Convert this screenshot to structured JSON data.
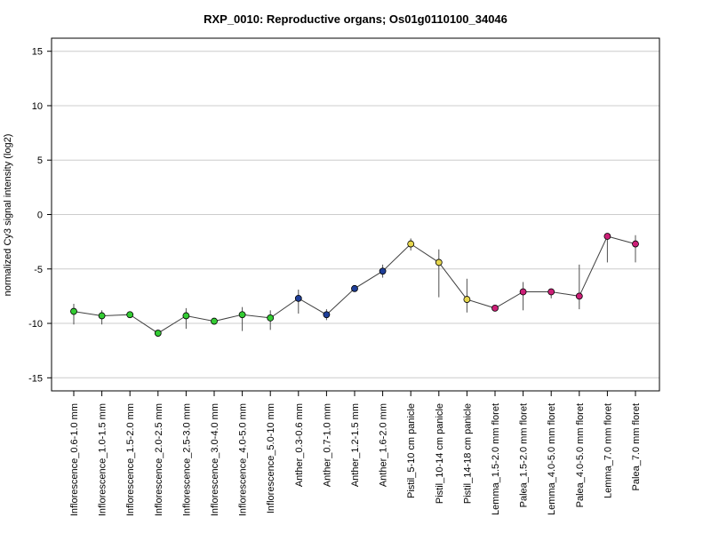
{
  "chart_data": {
    "type": "line",
    "title": "RXP_0010: Reproductive organs; Os01g0110100_34046",
    "xlabel": "",
    "ylabel": "normalized Cy3 signal intensity (log2)",
    "ylim": [
      -16.2,
      16.2
    ],
    "yticks": [
      -15,
      -10,
      -5,
      0,
      5,
      10,
      15
    ],
    "grid": true,
    "categories": [
      "Inflorescence_0.6-1.0 mm",
      "Inflorescence_1.0-1.5 mm",
      "Inflorescence_1.5-2.0 mm",
      "Inflorescence_2.0-2.5 mm",
      "Inflorescence_2.5-3.0 mm",
      "Inflorescence_3.0-4.0 mm",
      "Inflorescence_4.0-5.0 mm",
      "Inflorescence_5.0-10 mm",
      "Anther_0.3-0.6 mm",
      "Anther_0.7-1.0 mm",
      "Anther_1.2-1.5 mm",
      "Anther_1.6-2.0 mm",
      "Pistil_5-10 cm panicle",
      "Pistil_10-14 cm panicle",
      "Pistil_14-18 cm panicle",
      "Lemma_1.5-2.0 mm floret",
      "Palea_1.5-2.0 mm floret",
      "Lemma_4.0-5.0 mm floret",
      "Palea_4.0-5.0 mm floret",
      "Lemma_7.0 mm floret",
      "Palea_7.0 mm floret"
    ],
    "values": [
      -8.9,
      -9.3,
      -9.2,
      -10.9,
      -9.3,
      -9.8,
      -9.2,
      -9.5,
      -7.7,
      -9.2,
      -6.8,
      -5.2,
      -2.7,
      -4.4,
      -7.8,
      -8.6,
      -7.1,
      -7.1,
      -7.5,
      -2.0,
      -2.7
    ],
    "error_low": [
      -10.1,
      -10.1,
      -9.4,
      -11.0,
      -10.5,
      -10.0,
      -10.7,
      -10.6,
      -9.1,
      -9.7,
      -7.1,
      -5.8,
      -3.3,
      -7.6,
      -9.0,
      -8.8,
      -8.8,
      -7.7,
      -8.7,
      -4.4,
      -4.4
    ],
    "error_high": [
      -8.2,
      -8.8,
      -8.9,
      -10.8,
      -8.6,
      -9.6,
      -8.5,
      -8.8,
      -6.9,
      -8.7,
      -6.5,
      -4.6,
      -2.2,
      -3.2,
      -5.9,
      -8.4,
      -6.2,
      -6.8,
      -4.6,
      -1.8,
      -1.9
    ],
    "point_colors": [
      "#33cc33",
      "#33cc33",
      "#33cc33",
      "#33cc33",
      "#33cc33",
      "#33cc33",
      "#33cc33",
      "#33cc33",
      "#1f3f99",
      "#1f3f99",
      "#1f3f99",
      "#1f3f99",
      "#e6d64d",
      "#e6d64d",
      "#e6d64d",
      "#cc1f77",
      "#cc1f77",
      "#cc1f77",
      "#cc1f77",
      "#cc1f77",
      "#cc1f77"
    ],
    "line_color": "#404040",
    "grid_color": "#cccccc"
  }
}
